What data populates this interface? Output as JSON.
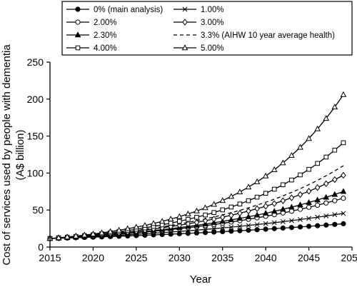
{
  "chart_data": {
    "type": "line",
    "xlabel": "Year",
    "ylabel_line1": "Cost of services used by people with dementia",
    "ylabel_line2": "(A$ billion)",
    "xlim": [
      2015,
      2050
    ],
    "ylim": [
      0,
      250
    ],
    "xticks": [
      2015,
      2020,
      2025,
      2030,
      2035,
      2040,
      2045,
      2050
    ],
    "yticks": [
      0,
      50,
      100,
      150,
      200,
      250
    ],
    "legend_position": "top",
    "base_value": 11.5,
    "base_year": 2015,
    "end_year": 2049,
    "series": [
      {
        "name": "0% (main analysis)",
        "marker": "filled-circle",
        "dash": false,
        "rate": 0.0,
        "end_value": 31.5
      },
      {
        "name": "1.00%",
        "marker": "x",
        "dash": false,
        "rate": 0.01,
        "end_value": 45.5
      },
      {
        "name": "2.00%",
        "marker": "open-circle",
        "dash": false,
        "rate": 0.02,
        "end_value": 66
      },
      {
        "name": "3.00%",
        "marker": "open-diamond",
        "dash": false,
        "rate": 0.03,
        "end_value": 97
      },
      {
        "name": "2.30%",
        "marker": "filled-triangle",
        "dash": false,
        "rate": 0.023,
        "end_value": 75
      },
      {
        "name": "3.3% (AIHW 10 year average health)",
        "marker": "none",
        "dash": true,
        "rate": 0.033,
        "end_value": 110
      },
      {
        "name": "4.00%",
        "marker": "open-square",
        "dash": false,
        "rate": 0.04,
        "end_value": 141
      },
      {
        "name": "5.00%",
        "marker": "open-triangle",
        "dash": false,
        "rate": 0.05,
        "end_value": 206
      }
    ]
  }
}
